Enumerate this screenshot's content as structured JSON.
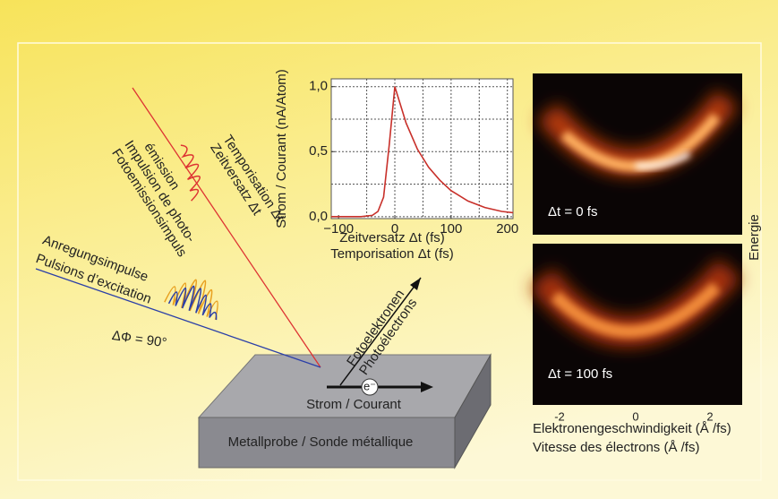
{
  "diagram": {
    "delay_label": [
      "Zeitversatz Δt",
      "Temporisation Δt"
    ],
    "probe_label": [
      "Fotoemissionsimpuls",
      "Impulsion de photo-",
      "émission"
    ],
    "pump_label": [
      "Anregungsimpulse",
      "Pulsions d’excitation"
    ],
    "phase_label": "ΔΦ = 90°",
    "electron_label": [
      "Fotoelektronen",
      "Photoélectrons"
    ],
    "current_label": "Strom / Courant",
    "electron_symbol": "e⁻",
    "sample_label": "Metallprobe / Sonde métallique"
  },
  "chart_data": {
    "type": "line",
    "xlabel": [
      "Zeitversatz  Δt (fs)",
      "Temporisation Δt (fs)"
    ],
    "ylabel": "Strom / Courant (nA/Atom)",
    "x": [
      -113,
      -60,
      -40,
      -30,
      -20,
      -10,
      0,
      10,
      20,
      40,
      60,
      80,
      100,
      130,
      160,
      190,
      210
    ],
    "series": [
      {
        "color": "#c8302a",
        "values": [
          0,
          0,
          0.01,
          0.04,
          0.15,
          0.55,
          1.0,
          0.86,
          0.72,
          0.52,
          0.38,
          0.28,
          0.2,
          0.12,
          0.07,
          0.04,
          0.03
        ]
      }
    ],
    "xlim": [
      -113,
      210
    ],
    "ylim": [
      -0.015,
      1.06
    ],
    "xticks": [
      {
        "value": -100,
        "label": "−100"
      },
      0,
      100,
      200
    ],
    "yticks": [
      {
        "value": 0,
        "label": "0,0"
      },
      {
        "value": 0.5,
        "label": "0,5"
      },
      {
        "value": 1,
        "label": "1,0"
      }
    ],
    "xgrid": [
      -50,
      0,
      50,
      100,
      150,
      200
    ],
    "ygrid": [
      0,
      0.25,
      0.5,
      0.75,
      1
    ],
    "grid": true
  },
  "arpes": {
    "panels": [
      "Δt = 0 fs",
      "Δt = 100 fs"
    ],
    "ticks": [
      "-2",
      "0",
      "2"
    ],
    "xlabel": [
      "Elektronengeschwindigkeit (Å /fs)",
      "Vitesse des électrons (Å /fs)"
    ],
    "ylabel": "Energie"
  }
}
